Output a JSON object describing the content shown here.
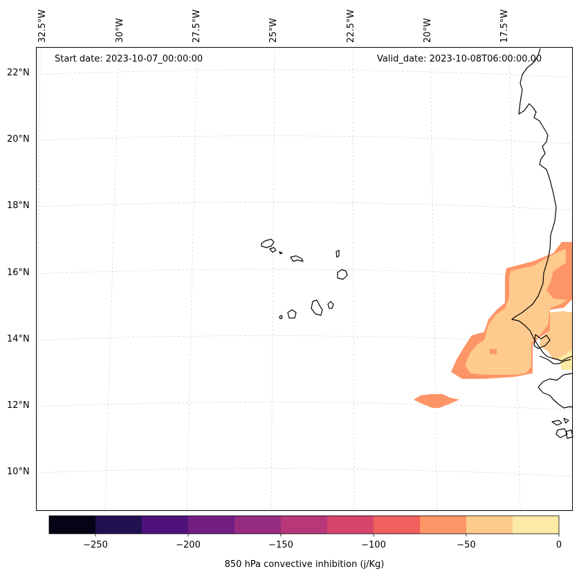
{
  "map": {
    "start_label": "Start date: 2023-10-07_00:00:00",
    "valid_label": "Valid_date: 2023-10-08T06:00:00.00",
    "lon_labels": [
      "32.5°W",
      "30°W",
      "27.5°W",
      "25°W",
      "22.5°W",
      "20°W",
      "17.5°W"
    ],
    "lat_labels": [
      "22°N",
      "20°N",
      "18°N",
      "16°N",
      "14°N",
      "12°N",
      "10°N"
    ],
    "gridlines": true,
    "coastline_color": "#000000"
  },
  "colorbar": {
    "title": "850 hPa convective inhibition (j/Kg)",
    "tick_labels": [
      "−250",
      "−200",
      "−150",
      "−100",
      "−50",
      "0"
    ],
    "bounds": [
      -275,
      0
    ],
    "step": 25,
    "colors": [
      "#050416",
      "#221150",
      "#4f127b",
      "#721f81",
      "#952c80",
      "#b73779",
      "#d8456c",
      "#f1605d",
      "#fd9567",
      "#feca8d",
      "#fdeaa5"
    ]
  }
}
